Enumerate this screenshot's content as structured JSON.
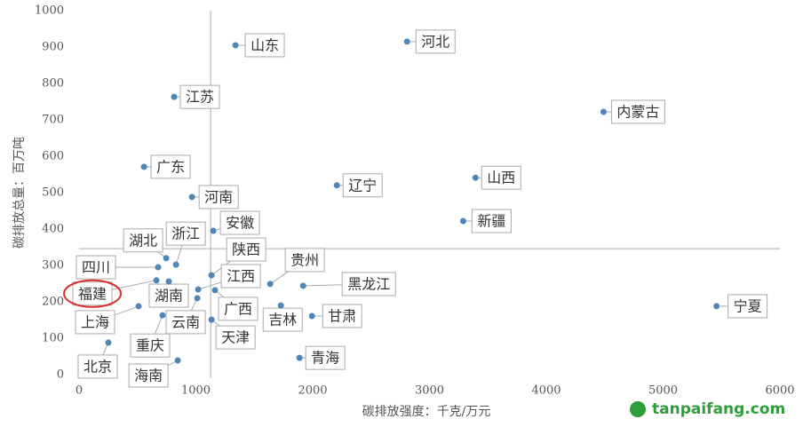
{
  "chart_data": {
    "type": "scatter",
    "xlabel": "碳排放强度：千克/万元",
    "ylabel": "碳排放总量：百万吨",
    "labels": [
      "山东",
      "河北",
      "江苏",
      "内蒙古",
      "广东",
      "山西",
      "河南",
      "辽宁",
      "新疆",
      "安徽",
      "湖北",
      "浙江",
      "四川",
      "福建",
      "湖南",
      "上海",
      "重庆",
      "北京",
      "海南",
      "云南",
      "陕西",
      "江西",
      "广西",
      "天津",
      "贵州",
      "黑龙江",
      "吉林",
      "甘肃",
      "青海",
      "宁夏"
    ],
    "x": [
      1339,
      2808,
      814,
      4490,
      556,
      3394,
      967,
      2207,
      3288,
      1149,
      746,
      830,
      677,
      662,
      768,
      510,
      715,
      251,
      845,
      1012,
      1134,
      1020,
      1164,
      1134,
      1636,
      1918,
      1728,
      1994,
      1887,
      5457
    ],
    "y": [
      905,
      915,
      763,
      722,
      571,
      541,
      488,
      520,
      422,
      395,
      320,
      302,
      295,
      259,
      256,
      188,
      163,
      88,
      39,
      210,
      273,
      234,
      232,
      151,
      249,
      244,
      190,
      161,
      46,
      188
    ],
    "color": "#4f86b8",
    "crosshair": {
      "x": 1127,
      "y": 346
    },
    "xlim": [
      0,
      6000
    ],
    "xticks": [
      0,
      1000,
      2000,
      3000,
      4000,
      5000,
      6000
    ],
    "ylim": [
      0,
      1000
    ],
    "yticks": [
      0,
      100,
      200,
      300,
      400,
      500,
      600,
      700,
      800,
      900,
      1000
    ],
    "watermark": "tanpaifang.com"
  }
}
